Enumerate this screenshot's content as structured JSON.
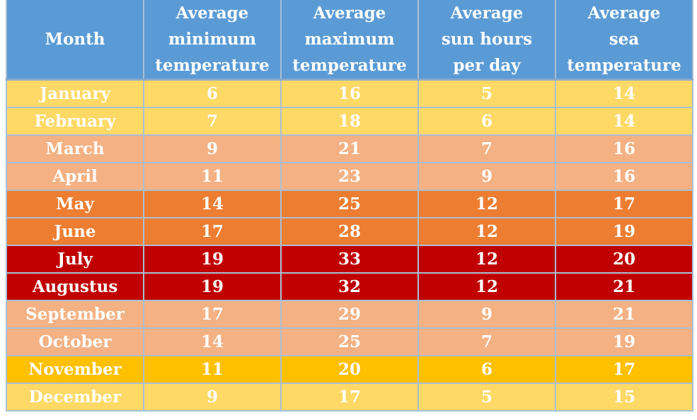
{
  "chart_data": {
    "type": "table",
    "columns": [
      "Month",
      "Average minimum temperature",
      "Average maximum temperature",
      "Average sun hours per day",
      "Average sea temperature"
    ],
    "header_lines": [
      [
        "Month"
      ],
      [
        "Average",
        "minimum",
        "temperature"
      ],
      [
        "Average",
        "maximum",
        "temperature"
      ],
      [
        "Average",
        "sun hours",
        "per day"
      ],
      [
        "Average",
        "sea",
        "temperature"
      ]
    ],
    "header_color": "#5b9bd5",
    "rows": [
      {
        "month": "January",
        "min_temp": "6",
        "max_temp": "16",
        "sun_hours": "5",
        "sea_temp": "14",
        "color": "#ffd966"
      },
      {
        "month": "February",
        "min_temp": "7",
        "max_temp": "18",
        "sun_hours": "6",
        "sea_temp": "14",
        "color": "#ffd966"
      },
      {
        "month": "March",
        "min_temp": "9",
        "max_temp": "21",
        "sun_hours": "7",
        "sea_temp": "16",
        "color": "#f4b183"
      },
      {
        "month": "April",
        "min_temp": "11",
        "max_temp": "23",
        "sun_hours": "9",
        "sea_temp": "16",
        "color": "#f4b183"
      },
      {
        "month": "May",
        "min_temp": "14",
        "max_temp": "25",
        "sun_hours": "12",
        "sea_temp": "17",
        "color": "#ed7d31"
      },
      {
        "month": "June",
        "min_temp": "17",
        "max_temp": "28",
        "sun_hours": "12",
        "sea_temp": "19",
        "color": "#ed7d31"
      },
      {
        "month": "July",
        "min_temp": "19",
        "max_temp": "33",
        "sun_hours": "12",
        "sea_temp": "20",
        "color": "#c00000"
      },
      {
        "month": "Augustus",
        "min_temp": "19",
        "max_temp": "32",
        "sun_hours": "12",
        "sea_temp": "21",
        "color": "#c00000"
      },
      {
        "month": "September",
        "min_temp": "17",
        "max_temp": "29",
        "sun_hours": "9",
        "sea_temp": "21",
        "color": "#f4b183"
      },
      {
        "month": "October",
        "min_temp": "14",
        "max_temp": "25",
        "sun_hours": "7",
        "sea_temp": "19",
        "color": "#f4b183"
      },
      {
        "month": "November",
        "min_temp": "11",
        "max_temp": "20",
        "sun_hours": "6",
        "sea_temp": "17",
        "color": "#ffc000"
      },
      {
        "month": "December",
        "min_temp": "9",
        "max_temp": "17",
        "sun_hours": "5",
        "sea_temp": "15",
        "color": "#ffd966"
      }
    ]
  }
}
